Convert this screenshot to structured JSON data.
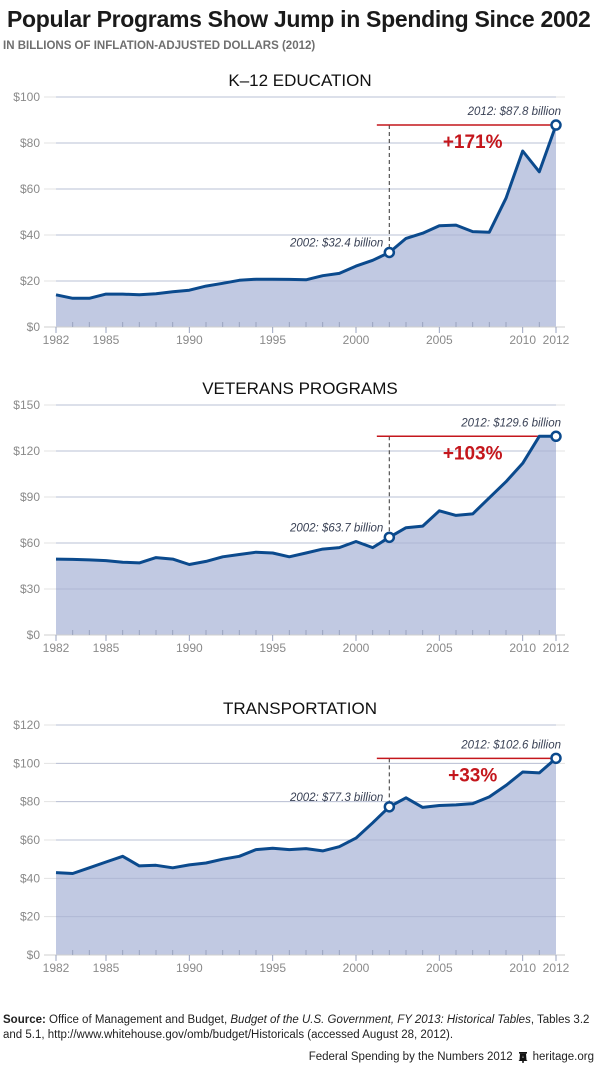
{
  "header": {
    "title": "Popular Programs Show Jump in Spending Since 2002",
    "subtitle": "IN BILLIONS OF INFLATION-ADJUSTED DOLLARS (2012)"
  },
  "colors": {
    "line": "#0b4a8d",
    "area": "#c1c9e2",
    "grid": "#e3e3e3",
    "highlight": "#c4161c",
    "axis_text": "#8a8a8a",
    "annotation_text": "#3a4256"
  },
  "chart_data": [
    {
      "type": "area",
      "title": "K–12 EDUCATION",
      "x": [
        1982,
        1983,
        1984,
        1985,
        1986,
        1987,
        1988,
        1989,
        1990,
        1991,
        1992,
        1993,
        1994,
        1995,
        1996,
        1997,
        1998,
        1999,
        2000,
        2001,
        2002,
        2003,
        2004,
        2005,
        2006,
        2007,
        2008,
        2009,
        2010,
        2011,
        2012
      ],
      "values": [
        14,
        12.5,
        12.5,
        14.3,
        14.3,
        14,
        14.5,
        15.3,
        16,
        17.8,
        19,
        20.3,
        20.8,
        20.8,
        20.7,
        20.5,
        22.3,
        23.3,
        26.5,
        29,
        32.4,
        38.5,
        40.8,
        44,
        44.3,
        41.5,
        41.2,
        56,
        76.5,
        67.5,
        87.8
      ],
      "ylim": [
        0,
        100
      ],
      "yticks": [
        0,
        20,
        40,
        60,
        80,
        100
      ],
      "ytick_labels": [
        "$0",
        "$20",
        "$40",
        "$60",
        "$80",
        "$100"
      ],
      "xticks": [
        1982,
        1985,
        1990,
        1995,
        2000,
        2005,
        2010,
        2012
      ],
      "xtick_labels": [
        "1982",
        "1985",
        "1990",
        "1995",
        "2000",
        "2005",
        "2010",
        "2012"
      ],
      "annotations": {
        "start_label": "2002: $32.4 billion",
        "end_label": "2012: $87.8 billion",
        "change_label": "+171%",
        "start_year": 2002,
        "start_value": 32.4,
        "end_year": 2012,
        "end_value": 87.8
      }
    },
    {
      "type": "area",
      "title": "VETERANS PROGRAMS",
      "x": [
        1982,
        1983,
        1984,
        1985,
        1986,
        1987,
        1988,
        1989,
        1990,
        1991,
        1992,
        1993,
        1994,
        1995,
        1996,
        1997,
        1998,
        1999,
        2000,
        2001,
        2002,
        2003,
        2004,
        2005,
        2006,
        2007,
        2008,
        2009,
        2010,
        2011,
        2012
      ],
      "values": [
        49.5,
        49.3,
        49,
        48.5,
        47.5,
        47,
        50.5,
        49.5,
        46,
        48,
        51,
        52.5,
        54,
        53.5,
        51,
        53.5,
        56,
        57,
        61,
        57,
        63.7,
        70,
        71,
        81,
        78,
        79,
        89.5,
        100,
        112,
        129.6,
        129.6
      ],
      "ylim": [
        0,
        150
      ],
      "yticks": [
        0,
        30,
        60,
        90,
        120,
        150
      ],
      "ytick_labels": [
        "$0",
        "$30",
        "$60",
        "$90",
        "$120",
        "$150"
      ],
      "xticks": [
        1982,
        1985,
        1990,
        1995,
        2000,
        2005,
        2010,
        2012
      ],
      "xtick_labels": [
        "1982",
        "1985",
        "1990",
        "1995",
        "2000",
        "2005",
        "2010",
        "2012"
      ],
      "annotations": {
        "start_label": "2002: $63.7 billion",
        "end_label": "2012: $129.6 billion",
        "change_label": "+103%",
        "start_year": 2002,
        "start_value": 63.7,
        "end_year": 2012,
        "end_value": 129.6
      }
    },
    {
      "type": "area",
      "title": "TRANSPORTATION",
      "x": [
        1982,
        1983,
        1984,
        1985,
        1986,
        1987,
        1988,
        1989,
        1990,
        1991,
        1992,
        1993,
        1994,
        1995,
        1996,
        1997,
        1998,
        1999,
        2000,
        2001,
        2002,
        2003,
        2004,
        2005,
        2006,
        2007,
        2008,
        2009,
        2010,
        2011,
        2012
      ],
      "values": [
        43,
        42.5,
        45.5,
        48.5,
        51.5,
        46.5,
        46.8,
        45.5,
        47,
        48,
        50,
        51.5,
        55,
        55.7,
        55,
        55.5,
        54.3,
        56.5,
        61,
        69,
        77.3,
        82,
        77,
        78,
        78.3,
        79,
        82.5,
        88.5,
        95.5,
        95,
        102.6
      ],
      "ylim": [
        0,
        120
      ],
      "yticks": [
        0,
        20,
        40,
        60,
        80,
        100,
        120
      ],
      "ytick_labels": [
        "$0",
        "$20",
        "$40",
        "$60",
        "$80",
        "$100",
        "$120"
      ],
      "xticks": [
        1982,
        1985,
        1990,
        1995,
        2000,
        2005,
        2010,
        2012
      ],
      "xtick_labels": [
        "1982",
        "1985",
        "1990",
        "1995",
        "2000",
        "2005",
        "2010",
        "2012"
      ],
      "annotations": {
        "start_label": "2002: $77.3 billion",
        "end_label": "2012: $102.6 billion",
        "change_label": "+33%",
        "start_year": 2002,
        "start_value": 77.3,
        "end_year": 2012,
        "end_value": 102.6
      }
    }
  ],
  "source": {
    "label": "Source:",
    "text_1": " Office of Management and Budget, ",
    "italic": "Budget of the U.S. Government, FY 2013: Historical Tables",
    "text_2": ", Tables 3.2 and 5.1, http://www.whitehouse.gov/omb/budget/Historicals (accessed August 28, 2012)."
  },
  "footer": {
    "publication": "Federal Spending by the Numbers 2012",
    "logo_icon": "liberty-bell-icon",
    "site": "heritage.org"
  }
}
